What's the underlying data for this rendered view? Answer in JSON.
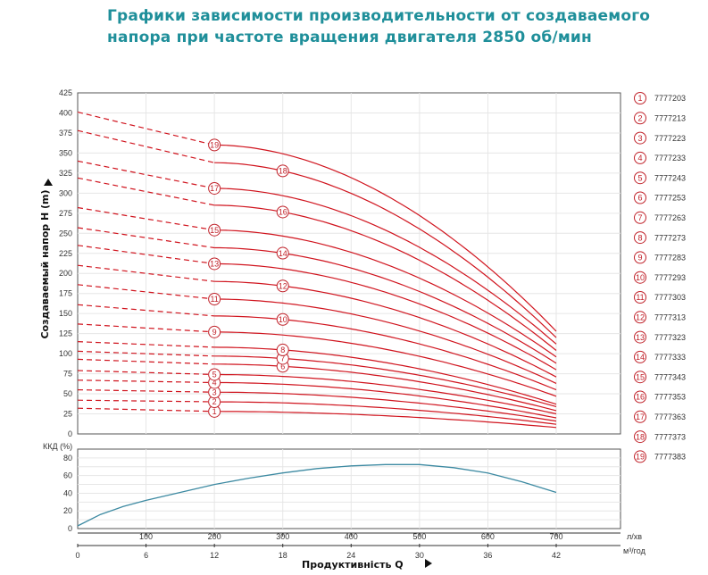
{
  "title": {
    "line1": "Графики зависимости производительности от создаваемого",
    "line2": "напора при частоте вращения двигателя 2850 об/мин"
  },
  "colors": {
    "title": "#1f8f9a",
    "curve": "#d0141e",
    "marker": "#c0222a",
    "efficiency": "#3d8aa2",
    "grid": "#e6e6e6"
  },
  "chart_data": [
    {
      "type": "line",
      "ylabel": "Создаваемый напор Н (m)",
      "ylim": [
        0,
        425
      ],
      "yticks": [
        0,
        25,
        50,
        75,
        100,
        125,
        150,
        175,
        200,
        225,
        250,
        275,
        300,
        325,
        350,
        375,
        400,
        425
      ],
      "xlim": [
        0,
        42
      ],
      "grid": true,
      "shutoff_heads": [
        32,
        42,
        55,
        67,
        79,
        93,
        103,
        115,
        137,
        161,
        186,
        210,
        235,
        257,
        282,
        319,
        340,
        378,
        401
      ],
      "heads_at_12": [
        28,
        40,
        52,
        64,
        74,
        87,
        97,
        108,
        127,
        147,
        168,
        190,
        212,
        232,
        254,
        285,
        306,
        338,
        360
      ],
      "heads_at_42": [
        8,
        12,
        16,
        20,
        25,
        29,
        34,
        37,
        47,
        55,
        63,
        71,
        80,
        88,
        96,
        104,
        112,
        120,
        128
      ],
      "dashed_until_x": 12,
      "label_positions_x": [
        12,
        12,
        12,
        12,
        12,
        18,
        18,
        18,
        12,
        18,
        12,
        18,
        12,
        18,
        12,
        18,
        12,
        18,
        12
      ],
      "series": [
        {
          "marker": "1",
          "code": "7777203"
        },
        {
          "marker": "2",
          "code": "7777213"
        },
        {
          "marker": "3",
          "code": "7777223"
        },
        {
          "marker": "4",
          "code": "7777233"
        },
        {
          "marker": "5",
          "code": "7777243"
        },
        {
          "marker": "6",
          "code": "7777253"
        },
        {
          "marker": "7",
          "code": "7777263"
        },
        {
          "marker": "8",
          "code": "7777273"
        },
        {
          "marker": "9",
          "code": "7777283"
        },
        {
          "marker": "10",
          "code": "7777293"
        },
        {
          "marker": "11",
          "code": "7777303"
        },
        {
          "marker": "12",
          "code": "7777313"
        },
        {
          "marker": "13",
          "code": "7777323"
        },
        {
          "marker": "14",
          "code": "7777333"
        },
        {
          "marker": "15",
          "code": "7777343"
        },
        {
          "marker": "16",
          "code": "7777353"
        },
        {
          "marker": "17",
          "code": "7777363"
        },
        {
          "marker": "18",
          "code": "7777373"
        },
        {
          "marker": "19",
          "code": "7777383"
        }
      ]
    },
    {
      "type": "line",
      "ylabel": "ККД (%)",
      "ylim": [
        0,
        90
      ],
      "yticks": [
        0,
        20,
        40,
        60,
        80
      ],
      "xlim": [
        0,
        42
      ],
      "grid": true,
      "x": [
        0,
        2,
        4,
        6,
        9,
        12,
        15,
        18,
        21,
        24,
        27,
        30,
        33,
        36,
        39,
        42
      ],
      "y": [
        3,
        16,
        25,
        32,
        41,
        50,
        57,
        63,
        68,
        71,
        72.5,
        72.5,
        69,
        63,
        53,
        41
      ]
    }
  ],
  "x_axis_top": {
    "ticks": [
      "100",
      "200",
      "300",
      "400",
      "500",
      "600",
      "700"
    ],
    "unit": "л/хв"
  },
  "x_axis_bottom": {
    "ticks": [
      "0",
      "6",
      "12",
      "18",
      "24",
      "30",
      "36",
      "42"
    ],
    "unit": "м³/год"
  },
  "xlabel": "Продуктивність Q"
}
